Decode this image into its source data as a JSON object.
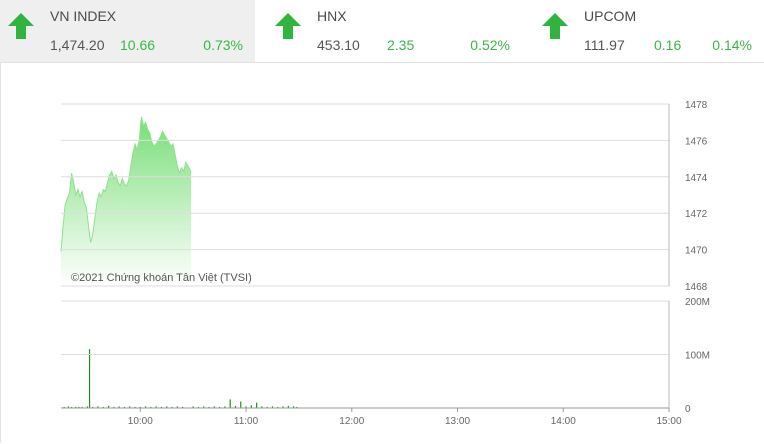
{
  "indices": [
    {
      "name": "VN INDEX",
      "price": "1,474.20",
      "change": "10.66",
      "percent": "0.73%",
      "trend": "up-arrow-icon",
      "active": true
    },
    {
      "name": "HNX",
      "price": "453.10",
      "change": "2.35",
      "percent": "0.52%",
      "trend": "up-arrow-icon",
      "active": false
    },
    {
      "name": "UPCOM",
      "price": "111.97",
      "change": "0.16",
      "percent": "0.14%",
      "trend": "up-arrow-icon",
      "active": false
    }
  ],
  "colors": {
    "up": "#3bb54a",
    "area_top": "#7fe07f",
    "area_bottom": "#ffffff",
    "volume": "#1e8f1e",
    "grid": "#dddddd"
  },
  "chart_data": [
    {
      "type": "area",
      "series": [
        {
          "values": [
            [
              9.25,
              1469.9
            ],
            [
              9.27,
              1471.3
            ],
            [
              9.29,
              1472.5
            ],
            [
              9.31,
              1472.8
            ],
            [
              9.33,
              1473.1
            ],
            [
              9.35,
              1474.2
            ],
            [
              9.37,
              1473.7
            ],
            [
              9.39,
              1473.0
            ],
            [
              9.41,
              1473.3
            ],
            [
              9.43,
              1472.9
            ],
            [
              9.45,
              1473.2
            ],
            [
              9.47,
              1472.6
            ],
            [
              9.49,
              1472.3
            ],
            [
              9.51,
              1471.3
            ],
            [
              9.53,
              1470.4
            ],
            [
              9.55,
              1470.8
            ],
            [
              9.57,
              1471.7
            ],
            [
              9.59,
              1472.6
            ],
            [
              9.61,
              1473.1
            ],
            [
              9.63,
              1472.9
            ],
            [
              9.65,
              1473.3
            ],
            [
              9.67,
              1473.2
            ],
            [
              9.69,
              1473.7
            ],
            [
              9.71,
              1474.1
            ],
            [
              9.73,
              1474.3
            ],
            [
              9.75,
              1473.9
            ],
            [
              9.77,
              1474.1
            ],
            [
              9.79,
              1473.7
            ],
            [
              9.81,
              1473.5
            ],
            [
              9.83,
              1473.9
            ],
            [
              9.85,
              1473.6
            ],
            [
              9.87,
              1473.5
            ],
            [
              9.89,
              1473.8
            ],
            [
              9.91,
              1474.6
            ],
            [
              9.93,
              1475.3
            ],
            [
              9.95,
              1475.8
            ],
            [
              9.97,
              1475.5
            ],
            [
              9.99,
              1476.0
            ],
            [
              10.01,
              1477.3
            ],
            [
              10.03,
              1476.8
            ],
            [
              10.05,
              1477.0
            ],
            [
              10.07,
              1476.6
            ],
            [
              10.09,
              1476.4
            ],
            [
              10.11,
              1475.9
            ],
            [
              10.13,
              1475.7
            ],
            [
              10.15,
              1475.8
            ],
            [
              10.17,
              1476.0
            ],
            [
              10.19,
              1476.2
            ],
            [
              10.21,
              1476.5
            ],
            [
              10.23,
              1476.3
            ],
            [
              10.25,
              1476.1
            ],
            [
              10.27,
              1475.9
            ],
            [
              10.29,
              1475.7
            ],
            [
              10.31,
              1475.8
            ],
            [
              10.33,
              1475.2
            ],
            [
              10.35,
              1474.6
            ],
            [
              10.37,
              1474.2
            ],
            [
              10.39,
              1474.5
            ],
            [
              10.41,
              1474.3
            ],
            [
              10.43,
              1474.8
            ],
            [
              10.45,
              1474.6
            ],
            [
              10.47,
              1474.4
            ],
            [
              10.48,
              1474.2
            ]
          ]
        }
      ],
      "x_ticks": [
        "10:00",
        "11:00",
        "12:00",
        "13:00",
        "14:00",
        "15:00"
      ],
      "x_range": [
        "09:15",
        "15:00"
      ],
      "y_ticks": [
        "1478",
        "1476",
        "1474",
        "1472",
        "1470",
        "1468"
      ],
      "ylim": [
        1468,
        1478
      ],
      "annotation": "©2021 Chứng khoán Tân Việt (TVSI)",
      "grid": true
    },
    {
      "type": "bar",
      "series": [
        {
          "values": [
            [
              9.28,
              2
            ],
            [
              9.32,
              3
            ],
            [
              9.35,
              2
            ],
            [
              9.39,
              2
            ],
            [
              9.42,
              2
            ],
            [
              9.45,
              2
            ],
            [
              9.5,
              3
            ],
            [
              9.52,
              110
            ],
            [
              9.55,
              2
            ],
            [
              9.6,
              3
            ],
            [
              9.65,
              2
            ],
            [
              9.7,
              4
            ],
            [
              9.75,
              2
            ],
            [
              9.8,
              3
            ],
            [
              9.85,
              2
            ],
            [
              9.9,
              3
            ],
            [
              9.95,
              2
            ],
            [
              10.0,
              2
            ],
            [
              10.05,
              3
            ],
            [
              10.1,
              2
            ],
            [
              10.15,
              3
            ],
            [
              10.2,
              2
            ],
            [
              10.25,
              3
            ],
            [
              10.3,
              2
            ],
            [
              10.35,
              3
            ],
            [
              10.4,
              2
            ],
            [
              10.5,
              3
            ],
            [
              10.55,
              2
            ],
            [
              10.6,
              3
            ],
            [
              10.65,
              2
            ],
            [
              10.7,
              3
            ],
            [
              10.75,
              2
            ],
            [
              10.8,
              3
            ],
            [
              10.85,
              16
            ],
            [
              10.9,
              4
            ],
            [
              10.95,
              12
            ],
            [
              11.0,
              3
            ],
            [
              11.05,
              5
            ],
            [
              11.1,
              10
            ],
            [
              11.15,
              3
            ],
            [
              11.2,
              2
            ],
            [
              11.25,
              3
            ],
            [
              11.3,
              2
            ],
            [
              11.35,
              3
            ],
            [
              11.4,
              4
            ],
            [
              11.45,
              3
            ],
            [
              11.48,
              2
            ]
          ]
        }
      ],
      "y_ticks": [
        "200M",
        "100M",
        "0"
      ],
      "ylim": [
        0,
        200
      ]
    }
  ]
}
